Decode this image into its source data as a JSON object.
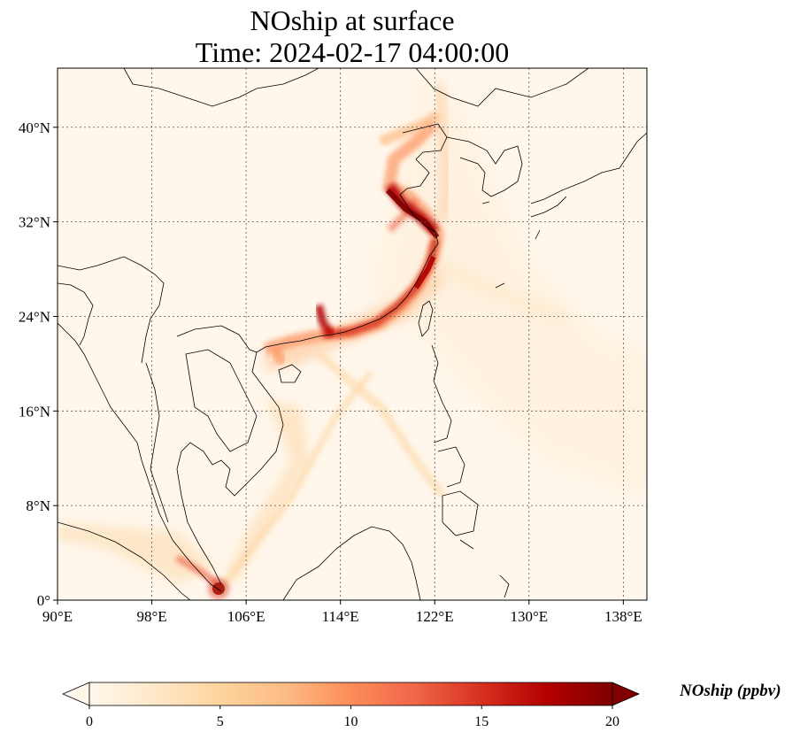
{
  "title": {
    "line1": "NOship at surface",
    "line2": "Time: 2024-02-17 04:00:00"
  },
  "map": {
    "extent": {
      "lon_min": 90,
      "lon_max": 140,
      "lat_min": 0,
      "lat_max": 45
    },
    "gridlines": true,
    "lon_ticks": [
      {
        "value": 90,
        "label": "90°E"
      },
      {
        "value": 98,
        "label": "98°E"
      },
      {
        "value": 106,
        "label": "106°E"
      },
      {
        "value": 114,
        "label": "114°E"
      },
      {
        "value": 122,
        "label": "122°E"
      },
      {
        "value": 130,
        "label": "130°E"
      },
      {
        "value": 138,
        "label": "138°E"
      }
    ],
    "lat_ticks": [
      {
        "value": 0,
        "label": "0°"
      },
      {
        "value": 8,
        "label": "8°N"
      },
      {
        "value": 16,
        "label": "16°N"
      },
      {
        "value": 24,
        "label": "24°N"
      },
      {
        "value": 32,
        "label": "32°N"
      },
      {
        "value": 40,
        "label": "40°N"
      }
    ]
  },
  "colorbar": {
    "label": "NOship (ppbv)",
    "colormap": "OrRd",
    "min": 0,
    "max": 20,
    "extend": "both",
    "ticks": [
      {
        "value": 0,
        "label": "0"
      },
      {
        "value": 5,
        "label": "5"
      },
      {
        "value": 10,
        "label": "10"
      },
      {
        "value": 15,
        "label": "15"
      },
      {
        "value": 20,
        "label": "20"
      }
    ],
    "stops": [
      "#fff7ec",
      "#fee8c8",
      "#fdd49e",
      "#fdbb84",
      "#fc8d59",
      "#ef6548",
      "#d7301f",
      "#b30000",
      "#7f0000"
    ]
  }
}
